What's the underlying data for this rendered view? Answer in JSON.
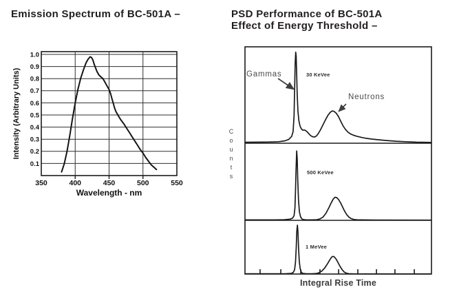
{
  "colors": {
    "ink": "#1a1a1a",
    "grid": "#2e2e2e",
    "title": "#221e1f",
    "annotation": "#4a4a4a"
  },
  "left_chart": {
    "title": "Emission Spectrum of BC-501A –",
    "chart_data": {
      "type": "line",
      "title": "Emission Spectrum of BC-501A",
      "xlabel": "Wavelength - nm",
      "ylabel": "Intensity (Arbitrary Units)",
      "xlim": [
        350,
        550
      ],
      "ylim": [
        0,
        1.0
      ],
      "xticks": [
        "350",
        "400",
        "450",
        "500",
        "550"
      ],
      "yticks": [
        "0.1",
        "0.2",
        "0.3",
        "0.4",
        "0.5",
        "0.6",
        "0.7",
        "0.8",
        "0.9",
        "1.0"
      ],
      "grid": true,
      "points": [
        [
          380,
          0.03
        ],
        [
          384,
          0.1
        ],
        [
          388,
          0.2
        ],
        [
          392,
          0.33
        ],
        [
          396,
          0.47
        ],
        [
          400,
          0.6
        ],
        [
          404,
          0.71
        ],
        [
          408,
          0.8
        ],
        [
          412,
          0.87
        ],
        [
          416,
          0.93
        ],
        [
          419,
          0.96
        ],
        [
          422,
          0.98
        ],
        [
          424,
          0.975
        ],
        [
          426,
          0.955
        ],
        [
          428,
          0.92
        ],
        [
          430,
          0.89
        ],
        [
          432,
          0.86
        ],
        [
          435,
          0.83
        ],
        [
          438,
          0.815
        ],
        [
          441,
          0.8
        ],
        [
          444,
          0.77
        ],
        [
          447,
          0.74
        ],
        [
          450,
          0.71
        ],
        [
          452,
          0.68
        ],
        [
          454,
          0.64
        ],
        [
          456,
          0.6
        ],
        [
          458,
          0.56
        ],
        [
          460,
          0.53
        ],
        [
          462,
          0.51
        ],
        [
          465,
          0.48
        ],
        [
          468,
          0.455
        ],
        [
          472,
          0.425
        ],
        [
          476,
          0.39
        ],
        [
          480,
          0.355
        ],
        [
          484,
          0.32
        ],
        [
          488,
          0.285
        ],
        [
          492,
          0.25
        ],
        [
          496,
          0.215
        ],
        [
          500,
          0.185
        ],
        [
          504,
          0.15
        ],
        [
          508,
          0.12
        ],
        [
          512,
          0.09
        ],
        [
          516,
          0.07
        ],
        [
          520,
          0.05
        ]
      ]
    }
  },
  "right_chart": {
    "title_line1": "PSD Performance of BC-501A",
    "title_line2": "Effect of Energy Threshold –",
    "ylabel": "Counts",
    "xlabel": "Integral Rise Time",
    "annotations": {
      "gammas": "Gammas",
      "neutrons": "Neutrons"
    },
    "x_tick_positions": [
      0.081,
      0.192,
      0.299,
      0.402,
      0.502,
      0.605,
      0.705,
      0.804,
      0.908
    ],
    "chart_data": [
      {
        "type": "line",
        "panel_label": "30 KeVee",
        "gamma_peak": {
          "x": 0.272,
          "height": 0.945
        },
        "neutron_peak": {
          "x": 0.468,
          "height": 0.335
        },
        "points": [
          [
            0,
            0.01
          ],
          [
            0.12,
            0.012
          ],
          [
            0.18,
            0.016
          ],
          [
            0.215,
            0.025
          ],
          [
            0.235,
            0.04
          ],
          [
            0.25,
            0.07
          ],
          [
            0.258,
            0.12
          ],
          [
            0.263,
            0.28
          ],
          [
            0.266,
            0.55
          ],
          [
            0.269,
            0.82
          ],
          [
            0.272,
            0.945
          ],
          [
            0.2745,
            0.9
          ],
          [
            0.277,
            0.72
          ],
          [
            0.28,
            0.5
          ],
          [
            0.284,
            0.33
          ],
          [
            0.289,
            0.235
          ],
          [
            0.295,
            0.18
          ],
          [
            0.302,
            0.15
          ],
          [
            0.31,
            0.135
          ],
          [
            0.318,
            0.138
          ],
          [
            0.326,
            0.13
          ],
          [
            0.335,
            0.115
          ],
          [
            0.345,
            0.092
          ],
          [
            0.355,
            0.075
          ],
          [
            0.365,
            0.066
          ],
          [
            0.374,
            0.065
          ],
          [
            0.383,
            0.075
          ],
          [
            0.393,
            0.1
          ],
          [
            0.405,
            0.14
          ],
          [
            0.418,
            0.19
          ],
          [
            0.432,
            0.245
          ],
          [
            0.445,
            0.29
          ],
          [
            0.457,
            0.32
          ],
          [
            0.468,
            0.335
          ],
          [
            0.478,
            0.33
          ],
          [
            0.49,
            0.31
          ],
          [
            0.502,
            0.275
          ],
          [
            0.514,
            0.225
          ],
          [
            0.526,
            0.18
          ],
          [
            0.538,
            0.145
          ],
          [
            0.552,
            0.115
          ],
          [
            0.567,
            0.095
          ],
          [
            0.583,
            0.082
          ],
          [
            0.6,
            0.072
          ],
          [
            0.625,
            0.06
          ],
          [
            0.65,
            0.051
          ],
          [
            0.68,
            0.043
          ],
          [
            0.72,
            0.035
          ],
          [
            0.76,
            0.028
          ],
          [
            0.81,
            0.021
          ],
          [
            0.86,
            0.016
          ],
          [
            0.92,
            0.011
          ],
          [
            1,
            0.008
          ]
        ]
      },
      {
        "type": "line",
        "panel_label": "500 KeVee",
        "gamma_peak": {
          "x": 0.277,
          "height": 0.9
        },
        "neutron_peak": {
          "x": 0.483,
          "height": 0.3
        },
        "points": [
          [
            0,
            0.006
          ],
          [
            0.16,
            0.006
          ],
          [
            0.21,
            0.008
          ],
          [
            0.24,
            0.014
          ],
          [
            0.255,
            0.028
          ],
          [
            0.263,
            0.06
          ],
          [
            0.268,
            0.16
          ],
          [
            0.271,
            0.38
          ],
          [
            0.274,
            0.68
          ],
          [
            0.277,
            0.9
          ],
          [
            0.28,
            0.8
          ],
          [
            0.283,
            0.52
          ],
          [
            0.287,
            0.26
          ],
          [
            0.292,
            0.11
          ],
          [
            0.298,
            0.045
          ],
          [
            0.305,
            0.018
          ],
          [
            0.315,
            0.009
          ],
          [
            0.33,
            0.006
          ],
          [
            0.36,
            0.005
          ],
          [
            0.385,
            0.008
          ],
          [
            0.402,
            0.018
          ],
          [
            0.418,
            0.042
          ],
          [
            0.434,
            0.09
          ],
          [
            0.449,
            0.16
          ],
          [
            0.462,
            0.225
          ],
          [
            0.473,
            0.275
          ],
          [
            0.483,
            0.3
          ],
          [
            0.492,
            0.295
          ],
          [
            0.502,
            0.27
          ],
          [
            0.513,
            0.225
          ],
          [
            0.524,
            0.17
          ],
          [
            0.535,
            0.115
          ],
          [
            0.546,
            0.072
          ],
          [
            0.558,
            0.04
          ],
          [
            0.57,
            0.022
          ],
          [
            0.583,
            0.012
          ],
          [
            0.6,
            0.007
          ],
          [
            0.63,
            0.005
          ],
          [
            0.7,
            0.004
          ],
          [
            1,
            0.003
          ]
        ]
      },
      {
        "type": "line",
        "panel_label": "1 MeVee",
        "gamma_peak": {
          "x": 0.281,
          "height": 0.91
        },
        "neutron_peak": {
          "x": 0.472,
          "height": 0.33
        },
        "points": [
          [
            0,
            0.005
          ],
          [
            0.17,
            0.005
          ],
          [
            0.22,
            0.007
          ],
          [
            0.247,
            0.012
          ],
          [
            0.259,
            0.03
          ],
          [
            0.266,
            0.08
          ],
          [
            0.271,
            0.22
          ],
          [
            0.275,
            0.5
          ],
          [
            0.278,
            0.8
          ],
          [
            0.281,
            0.91
          ],
          [
            0.284,
            0.78
          ],
          [
            0.287,
            0.5
          ],
          [
            0.291,
            0.24
          ],
          [
            0.296,
            0.1
          ],
          [
            0.302,
            0.035
          ],
          [
            0.31,
            0.012
          ],
          [
            0.325,
            0.006
          ],
          [
            0.355,
            0.005
          ],
          [
            0.378,
            0.008
          ],
          [
            0.395,
            0.02
          ],
          [
            0.412,
            0.055
          ],
          [
            0.428,
            0.115
          ],
          [
            0.443,
            0.195
          ],
          [
            0.455,
            0.265
          ],
          [
            0.465,
            0.315
          ],
          [
            0.472,
            0.33
          ],
          [
            0.48,
            0.315
          ],
          [
            0.49,
            0.27
          ],
          [
            0.5,
            0.205
          ],
          [
            0.511,
            0.135
          ],
          [
            0.522,
            0.075
          ],
          [
            0.533,
            0.035
          ],
          [
            0.544,
            0.015
          ],
          [
            0.556,
            0.007
          ],
          [
            0.58,
            0.004
          ],
          [
            0.65,
            0.003
          ],
          [
            1,
            0.002
          ]
        ]
      }
    ]
  }
}
